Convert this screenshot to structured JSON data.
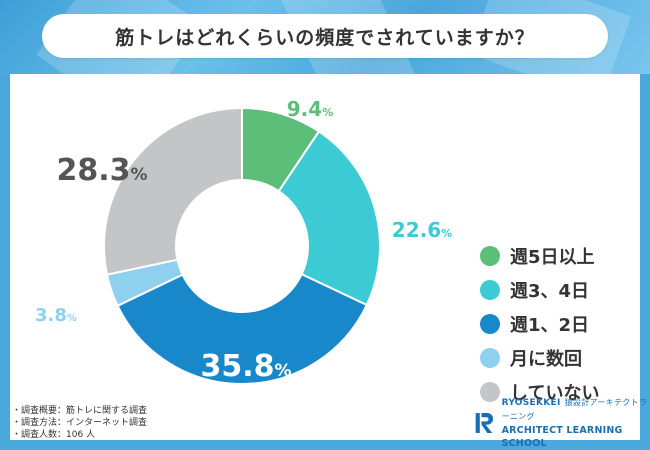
{
  "chart_data": {
    "type": "pie",
    "title": "筋トレはどれくらいの頻度でされていますか？",
    "categories": [
      "週5日以上",
      "週3、4日",
      "週1、2日",
      "月に数回",
      "していない"
    ],
    "values": [
      9.4,
      22.6,
      35.8,
      3.8,
      28.3
    ],
    "value_labels": [
      "9.4",
      "22.6",
      "35.8",
      "3.8",
      "28.3"
    ],
    "unit": "%",
    "colors": [
      "#5bbf7a",
      "#3ccbd4",
      "#1888cb",
      "#8ed0ee",
      "#c4c5c7"
    ],
    "label_colors": [
      "#5bbf7a",
      "#3ccbd4",
      "#ffffff",
      "#8ed0ee",
      "#555555"
    ],
    "legend_position": "right",
    "style": "donut"
  },
  "footnotes": [
    "・調査概要：筋トレに関する調査",
    "・調査方法：インターネット調査",
    "・調査人数：106 人"
  ],
  "logo": {
    "name_top": "RYOSEKKEI",
    "name_top_jp": "猿設計アーキテクトラーニング",
    "name_bottom": "ARCHITECT LEARNING SCHOOL",
    "brand_color": "#1a6fb3"
  }
}
